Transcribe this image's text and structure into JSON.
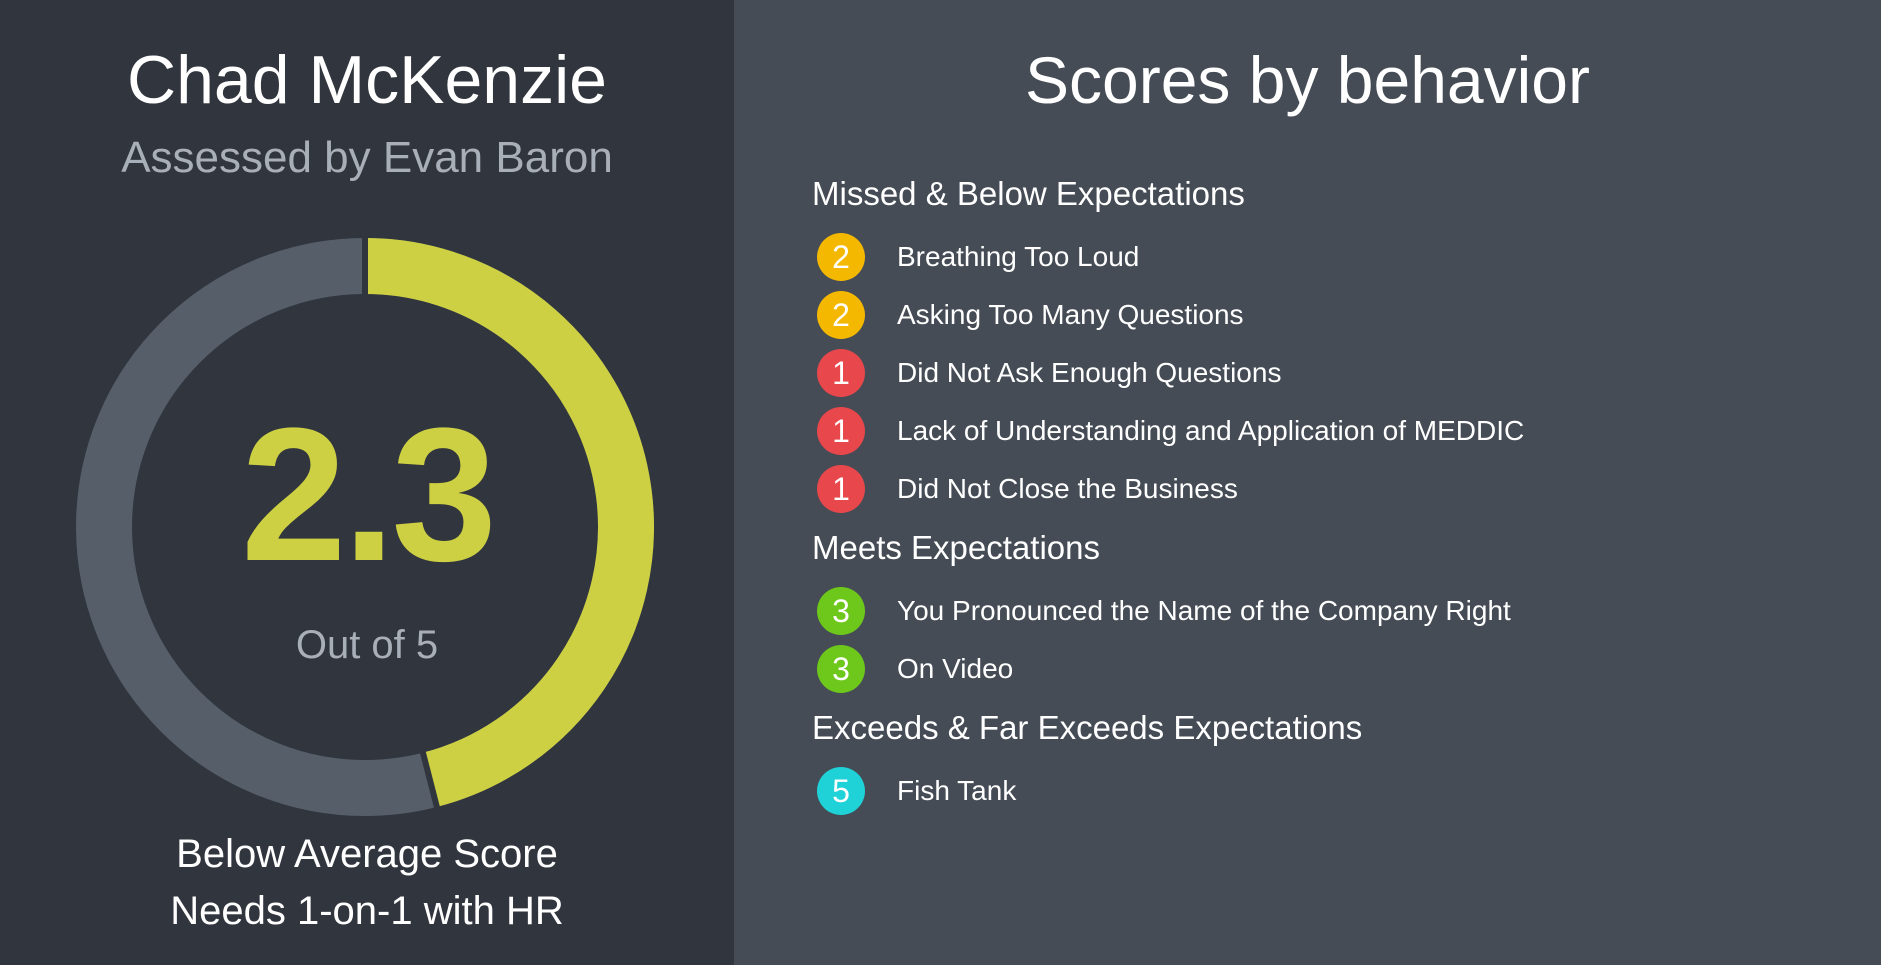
{
  "profile": {
    "name": "Chad McKenzie",
    "assessor": "Assessed by Evan Baron"
  },
  "score": {
    "value": "2.3",
    "numeric": 2.3,
    "max": 5,
    "out_of_label": "Out of 5",
    "verdict_line1": "Below Average Score",
    "verdict_line2": "Needs 1-on-1 with HR"
  },
  "colors": {
    "left_background": "#31353d",
    "right_background": "#454c55",
    "ring_track": "#555e69",
    "ring_fill": "#cdd043",
    "score_text": "#cdd043",
    "muted_text": "#a9afb8",
    "score_1": "#e8474c",
    "score_2": "#f5b800",
    "score_3": "#6dc81b",
    "score_5": "#1fd2d8"
  },
  "behaviors": {
    "title": "Scores by behavior",
    "groups": [
      {
        "heading": "Missed & Below Expectations",
        "items": [
          {
            "score": "2",
            "label": "Breathing Too Loud",
            "color": "#f5b800"
          },
          {
            "score": "2",
            "label": "Asking Too Many Questions",
            "color": "#f5b800"
          },
          {
            "score": "1",
            "label": "Did Not Ask Enough Questions",
            "color": "#e8474c"
          },
          {
            "score": "1",
            "label": "Lack of Understanding and Application of MEDDIC",
            "color": "#e8474c"
          },
          {
            "score": "1",
            "label": "Did Not Close the Business",
            "color": "#e8474c"
          }
        ]
      },
      {
        "heading": "Meets Expectations",
        "items": [
          {
            "score": "3",
            "label": "You Pronounced the Name of the Company Right",
            "color": "#6dc81b"
          },
          {
            "score": "3",
            "label": "On Video",
            "color": "#6dc81b"
          }
        ]
      },
      {
        "heading": "Exceeds & Far Exceeds Expectations",
        "items": [
          {
            "score": "5",
            "label": "Fish Tank",
            "color": "#1fd2d8"
          }
        ]
      }
    ]
  }
}
